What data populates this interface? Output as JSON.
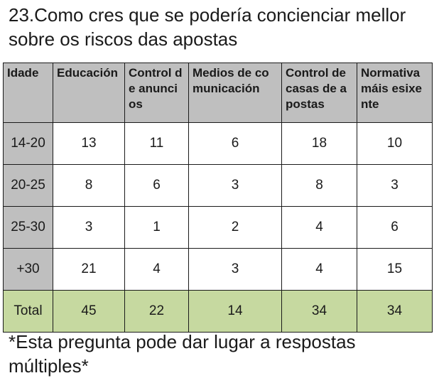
{
  "title": "23.Como cres que se podería concienciar mellor sobre os riscos das apostas",
  "table": {
    "headers": [
      "Idade",
      "Educación",
      "Control de anuncios",
      "Medios de comunicación",
      "Control de casas de apostas",
      "Normativa máis esixente"
    ],
    "rows": [
      [
        "14-20",
        "13",
        "11",
        "6",
        "18",
        "10"
      ],
      [
        "20-25",
        "8",
        "6",
        "3",
        "8",
        "3"
      ],
      [
        "25-30",
        "3",
        "1",
        "2",
        "4",
        "6"
      ],
      [
        "+30",
        "21",
        "4",
        "3",
        "4",
        "15"
      ]
    ],
    "total": [
      "Total",
      "45",
      "22",
      "14",
      "34",
      "34"
    ]
  },
  "note": "*Esta pregunta pode dar lugar a respostas múltiples*",
  "colors": {
    "header_bg": "#bfbfbf",
    "total_bg": "#c6d9a0",
    "border": "#1a1a1a"
  }
}
